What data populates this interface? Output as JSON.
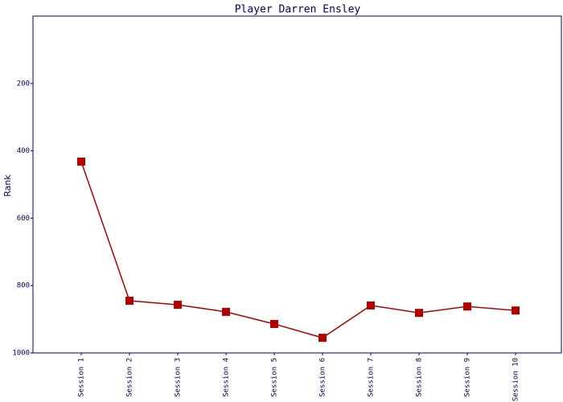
{
  "chart_data": {
    "type": "line",
    "title": "Player Darren Ensley",
    "y_label": "Rank",
    "categories": [
      "Session 1",
      "Session 2",
      "Session 3",
      "Session 4",
      "Session 5",
      "Session 6",
      "Session 7",
      "Session 8",
      "Session 9",
      "Session 10"
    ],
    "series": [
      {
        "name": "Rank",
        "color": "#b00000",
        "values": [
          432,
          845,
          857,
          878,
          914,
          955,
          859,
          881,
          862,
          874
        ]
      }
    ],
    "ylim": [
      1000,
      0
    ],
    "yticks": [
      200,
      400,
      600,
      800,
      1000
    ]
  }
}
